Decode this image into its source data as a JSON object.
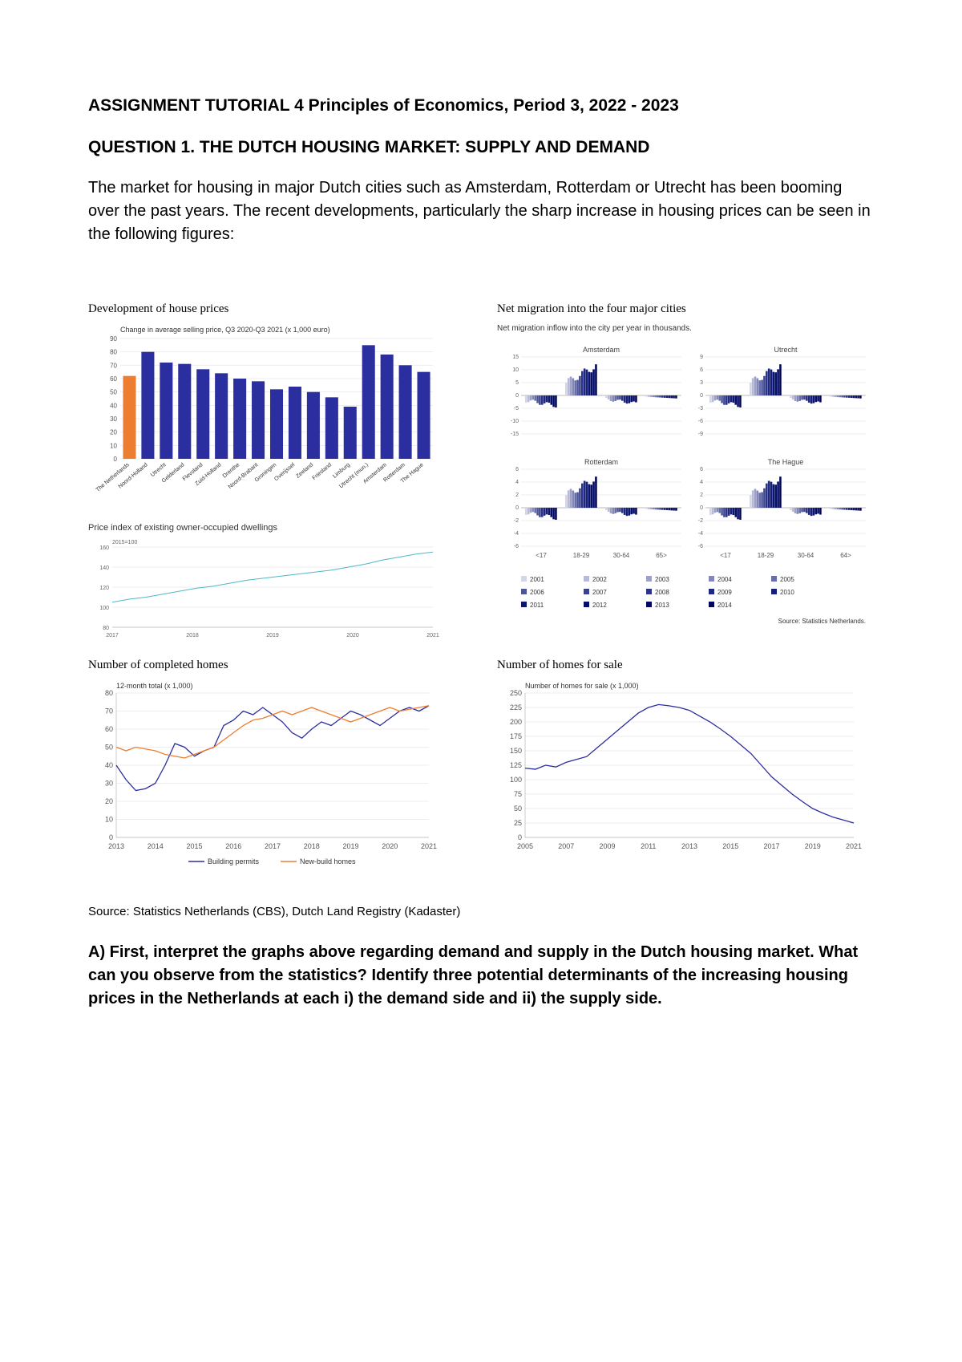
{
  "title": "ASSIGNMENT TUTORIAL 4 Principles of Economics, Period 3, 2022 - 2023",
  "subtitle": "QUESTION 1. THE DUTCH HOUSING MARKET: SUPPLY AND DEMAND",
  "body": "The market for housing in major Dutch cities such as Amsterdam, Rotterdam or Utrecht has been booming over the past years. The recent developments, particularly the sharp increase in housing prices can be seen in the following figures:",
  "chart1": {
    "title": "Development of house prices",
    "subtitle": "Change in average selling price, Q3 2020-Q3 2021 (x 1,000 euro)",
    "categories": [
      "The Netherlands",
      "Noord-Holland",
      "Utrecht",
      "Gelderland",
      "Flevoland",
      "Zuid-Holland",
      "Drenthe",
      "Noord-Brabant",
      "Groningen",
      "Overijssel",
      "Zeeland",
      "Friesland",
      "Limburg",
      "Utrecht (mun.)",
      "Amsterdam",
      "Rotterdam",
      "The Hague"
    ],
    "values": [
      62,
      80,
      72,
      71,
      67,
      64,
      60,
      58,
      52,
      54,
      50,
      46,
      39,
      85,
      78,
      70,
      65
    ],
    "first_color": "#ed7d31",
    "rest_color": "#2b2e9e",
    "ylim": [
      0,
      90
    ],
    "ytick_step": 10,
    "miniTitle": "Price index of existing owner-occupied dwellings",
    "miniSubtitle": "2015=100",
    "indexYears": [
      "2017",
      "2018",
      "2019",
      "2020",
      "2021"
    ],
    "indexY": [
      80,
      160
    ],
    "indexTicks": [
      80,
      100,
      120,
      140,
      160
    ],
    "indexValues": [
      105,
      108,
      110,
      113,
      116,
      119,
      121,
      124,
      127,
      129,
      131,
      133,
      135,
      137,
      140,
      143,
      147,
      150,
      153,
      155
    ]
  },
  "chart2": {
    "title": "Net migration into the four major cities",
    "subtitle": "Net migration inflow into the city per year in thousands.",
    "source": "Source: Statistics Netherlands.",
    "panels": [
      {
        "name": "Amsterdam",
        "ylim": [
          -15,
          15
        ],
        "ticks": [
          -15,
          -10,
          -5,
          0,
          5,
          10,
          15
        ]
      },
      {
        "name": "Utrecht",
        "ylim": [
          -9,
          9
        ],
        "ticks": [
          -9,
          -6,
          -3,
          0,
          3,
          6,
          9
        ]
      },
      {
        "name": "Rotterdam",
        "ylim": [
          -6,
          6
        ],
        "ticks": [
          -6,
          -4,
          -2,
          0,
          2,
          4,
          6
        ]
      },
      {
        "name": "The Hague",
        "ylim": [
          -6,
          6
        ],
        "ticks": [
          -6,
          -4,
          -2,
          0,
          2,
          4,
          6
        ]
      }
    ],
    "xlabels": [
      "<17",
      "18-29",
      "30-64",
      "65>"
    ],
    "xlabels2": [
      "<17",
      "18-29",
      "30-64",
      "64>"
    ],
    "legendYears": [
      "2001",
      "2002",
      "2003",
      "2004",
      "2005",
      "2006",
      "2007",
      "2008",
      "2009",
      "2010",
      "2011",
      "2012",
      "2013",
      "2014"
    ],
    "legendColors": [
      "#d4d6e8",
      "#b8bbd8",
      "#9da1c8",
      "#8287b8",
      "#676ea8",
      "#4c5598",
      "#3a4390",
      "#2b3488",
      "#1f2880",
      "#151f78",
      "#0b1670",
      "#050f68",
      "#020960",
      "#010558"
    ]
  },
  "chart3": {
    "title": "Number of completed homes",
    "subtitle": "12-month total (x 1,000)",
    "xYears": [
      "2013",
      "2014",
      "2015",
      "2016",
      "2017",
      "2018",
      "2019",
      "2020",
      "2021"
    ],
    "ylim": [
      0,
      80
    ],
    "ytick_step": 10,
    "permits_color": "#2b2e9e",
    "newbuild_color": "#ed7d31",
    "permits": [
      40,
      32,
      26,
      27,
      30,
      40,
      52,
      50,
      45,
      48,
      50,
      62,
      65,
      70,
      68,
      72,
      68,
      64,
      58,
      55,
      60,
      64,
      62,
      66,
      70,
      68,
      65,
      62,
      66,
      70,
      72,
      70,
      73
    ],
    "newbuild": [
      50,
      48,
      50,
      49,
      48,
      46,
      45,
      44,
      46,
      48,
      50,
      54,
      58,
      62,
      65,
      66,
      68,
      70,
      68,
      70,
      72,
      70,
      68,
      66,
      64,
      66,
      68,
      70,
      72,
      70,
      71,
      72,
      73
    ],
    "legend": [
      "Building permits",
      "New-build homes"
    ]
  },
  "chart4": {
    "title": "Number of homes for sale",
    "subtitle": "Number of homes for sale (x 1,000)",
    "xYears": [
      "2005",
      "2007",
      "2009",
      "2011",
      "2013",
      "2015",
      "2017",
      "2019",
      "2021"
    ],
    "ylim": [
      0,
      250
    ],
    "ytick_step": 25,
    "line_color": "#2b2e9e",
    "values": [
      120,
      118,
      125,
      122,
      130,
      135,
      140,
      155,
      170,
      185,
      200,
      215,
      225,
      230,
      228,
      225,
      220,
      210,
      200,
      188,
      175,
      160,
      145,
      125,
      105,
      90,
      75,
      62,
      50,
      42,
      35,
      30,
      25
    ]
  },
  "source_text": "Source: Statistics Netherlands (CBS), Dutch Land Registry (Kadaster)",
  "question": "A) First, interpret the graphs above regarding demand and supply in the Dutch housing market. What can you observe from the statistics? Identify three potential determinants of the increasing housing prices in the Netherlands at each i) the demand side and ii) the supply side."
}
